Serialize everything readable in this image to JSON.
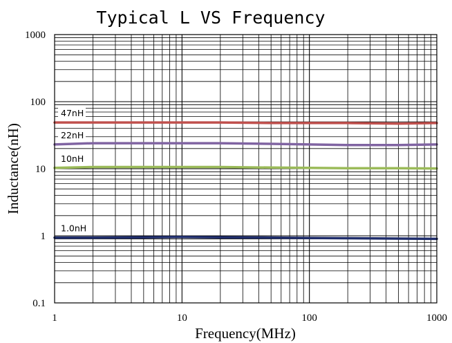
{
  "chart_data": {
    "type": "line",
    "title": "Typical L VS Frequency",
    "xlabel": "Frequency(MHz)",
    "ylabel": "Inductance(nH)",
    "x_scale": "log",
    "y_scale": "log",
    "xlim": [
      1,
      1000
    ],
    "ylim": [
      0.1,
      1000
    ],
    "x_ticks": [
      "1",
      "10",
      "100",
      "1000"
    ],
    "y_ticks": [
      "0.1",
      "1",
      "10",
      "100",
      "1000"
    ],
    "grid": true,
    "legend": "inline labels",
    "series": [
      {
        "name": "47nH",
        "color": "#c0504d",
        "x": [
          1,
          2,
          5,
          10,
          20,
          50,
          100,
          200,
          500,
          1000
        ],
        "y": [
          49,
          49,
          49,
          49,
          49,
          48,
          48,
          48,
          47,
          48
        ]
      },
      {
        "name": "22nH",
        "color": "#8064a2",
        "x": [
          1,
          2,
          5,
          10,
          20,
          50,
          100,
          200,
          500,
          1000
        ],
        "y": [
          23,
          24,
          24,
          24,
          24,
          23.5,
          23,
          22.5,
          22.5,
          23
        ]
      },
      {
        "name": "10nH",
        "color": "#9bbb59",
        "x": [
          1,
          2,
          5,
          10,
          20,
          50,
          100,
          200,
          500,
          1000
        ],
        "y": [
          10.3,
          10.6,
          10.6,
          10.6,
          10.6,
          10.4,
          10.3,
          10.2,
          10.2,
          10.1
        ]
      },
      {
        "name": "1.0nH",
        "color": "#1f2d6b",
        "x": [
          1,
          2,
          5,
          10,
          20,
          50,
          100,
          200,
          500,
          1000
        ],
        "y": [
          0.94,
          0.94,
          0.95,
          0.96,
          0.95,
          0.94,
          0.93,
          0.92,
          0.91,
          0.9
        ]
      }
    ]
  }
}
